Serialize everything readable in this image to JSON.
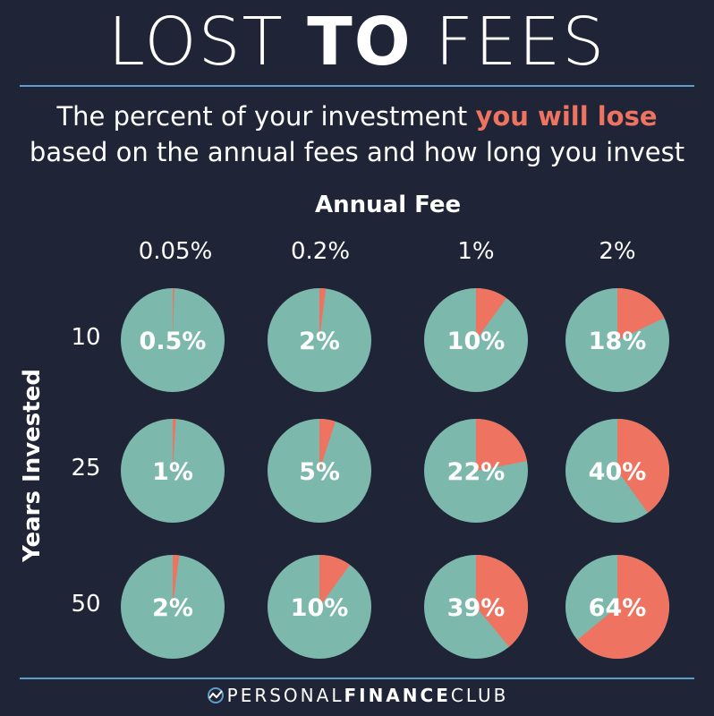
{
  "title": {
    "part1": "LOST ",
    "part2": "TO",
    "part3": " FEES"
  },
  "subtitle": {
    "line1_pre": "The percent of your investment ",
    "line1_highlight": "you will lose",
    "line2": "based on the annual fees and how long you invest"
  },
  "colors": {
    "background": "#1f2537",
    "kept": "#7db8ac",
    "lost": "#ee7461",
    "rule": "#5b9ec9",
    "text": "#ffffff"
  },
  "chart_data": {
    "type": "pie",
    "xlabel": "Annual Fee",
    "ylabel": "Years Invested",
    "columns": [
      "0.05%",
      "0.2%",
      "1%",
      "2%"
    ],
    "rows": [
      "10",
      "25",
      "50"
    ],
    "values": [
      [
        0.5,
        2,
        10,
        18
      ],
      [
        1,
        5,
        22,
        40
      ],
      [
        2,
        10,
        39,
        64
      ]
    ],
    "labels": [
      [
        "0.5%",
        "2%",
        "10%",
        "18%"
      ],
      [
        "1%",
        "5%",
        "22%",
        "40%"
      ],
      [
        "2%",
        "10%",
        "39%",
        "64%"
      ]
    ]
  },
  "footer": {
    "light1": "PERSONAL",
    "bold": "FINANCE",
    "light2": "CLUB",
    "logo_icon": "chart-line-icon"
  }
}
